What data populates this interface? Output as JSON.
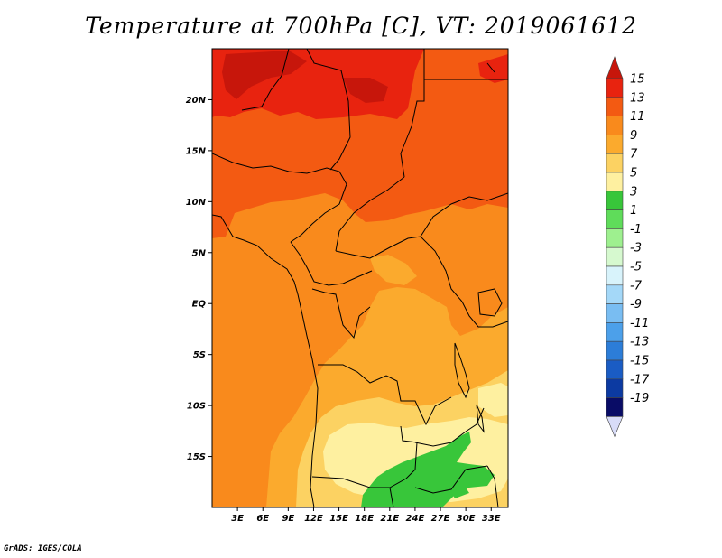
{
  "title": "Temperature at 700hPa [C], VT: 2019061612",
  "credit": "GrADS: IGES/COLA",
  "map": {
    "lon_range": [
      0,
      35
    ],
    "lat_range": [
      -20,
      25
    ],
    "lon_ticks": [
      "3E",
      "6E",
      "9E",
      "12E",
      "15E",
      "18E",
      "21E",
      "24E",
      "27E",
      "30E",
      "33E"
    ],
    "lon_tick_values": [
      3,
      6,
      9,
      12,
      15,
      18,
      21,
      24,
      27,
      30,
      33
    ],
    "lat_ticks": [
      "20N",
      "15N",
      "10N",
      "5N",
      "EQ",
      "5S",
      "10S",
      "15S"
    ],
    "lat_tick_values": [
      20,
      15,
      10,
      5,
      0,
      -5,
      -10,
      -15
    ]
  },
  "colorbar": {
    "labels": [
      "15",
      "13",
      "11",
      "9",
      "7",
      "5",
      "3",
      "1",
      "-1",
      "-3",
      "-5",
      "-7",
      "-9",
      "-11",
      "-13",
      "-15",
      "-17",
      "-19"
    ],
    "colors": [
      "#e8230f",
      "#f35a12",
      "#f98a1c",
      "#fbaa2d",
      "#fcd262",
      "#fef0a0",
      "#38c63a",
      "#5fdc5a",
      "#9ef08f",
      "#d6f9cf",
      "#d8f3fb",
      "#a4d8f8",
      "#79bdf2",
      "#4ca0ea",
      "#2c7dd8",
      "#1a5cc4",
      "#0c3aa2",
      "#090c66"
    ],
    "top_arrow_color": "#c7160b",
    "bottom_arrow_color": "#d8dcf8"
  },
  "palette": {
    "t15": "#c7160b",
    "t13": "#e8230f",
    "t11": "#f35a12",
    "t9": "#f98a1c",
    "t7": "#fbaa2d",
    "t5": "#fcd262",
    "t3": "#fef0a0",
    "t1": "#38c63a",
    "borders": "#000000"
  }
}
